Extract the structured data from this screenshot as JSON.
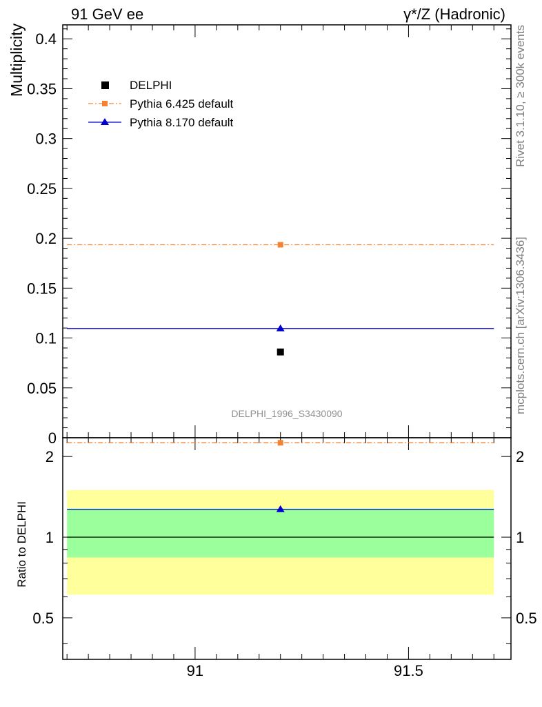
{
  "header": {
    "left_title": "91 GeV ee",
    "right_title": "γ*/Z (Hadronic)"
  },
  "side_text": {
    "rivet": "Rivet 3.1.10, ≥ 300k events",
    "mcplots": "mcplots.cern.ch [arXiv:1306.3436]"
  },
  "analysis_id": "DELPHI_1996_S3430090",
  "colors": {
    "data": "#000000",
    "pythia6": "#f58231",
    "pythia8": "#0000cc",
    "band_inner": "#9bff9b",
    "band_outer": "#ffff9b"
  },
  "chart_data": [
    {
      "type": "scatter",
      "panel": "main",
      "ylabel": "Multiplicity",
      "xlabel": "",
      "xlim": [
        90.69,
        91.74
      ],
      "ylim": [
        0,
        0.414
      ],
      "y_ticks": [
        0,
        0.05,
        0.1,
        0.15,
        0.2,
        0.25,
        0.3,
        0.35,
        0.4
      ],
      "y_tick_labels": [
        "0",
        "0.05",
        "0.1",
        "0.15",
        "0.2",
        "0.25",
        "0.3",
        "0.35",
        "0.4"
      ],
      "legend_position": "top-left",
      "series": [
        {
          "name": "DELPHI",
          "marker": "square",
          "line": "none",
          "x": [
            91.2
          ],
          "xerr": [
            0,
            0
          ],
          "values": [
            0.086
          ]
        },
        {
          "name": "Pythia 6.425 default",
          "marker": "square",
          "line": "dash-dot",
          "x": [
            91.2
          ],
          "xrange": [
            90.7,
            91.7
          ],
          "values": [
            0.1935
          ]
        },
        {
          "name": "Pythia 8.170 default",
          "marker": "triangle",
          "line": "solid",
          "x": [
            91.2
          ],
          "xrange": [
            90.7,
            91.7
          ],
          "values": [
            0.1095
          ]
        }
      ]
    },
    {
      "type": "scatter",
      "panel": "ratio",
      "ylabel": "Ratio to DELPHI",
      "xlabel": "",
      "xlim": [
        90.69,
        91.74
      ],
      "ylim": [
        0.35,
        2.35
      ],
      "y_ticks": [
        0.5,
        1,
        2
      ],
      "y_tick_labels": [
        "0.5",
        "1",
        "2"
      ],
      "x_ticks": [
        91,
        91.5
      ],
      "x_tick_labels": [
        "91",
        "91.5"
      ],
      "reference": 1,
      "bands": {
        "stat_low": 0.84,
        "stat_high": 1.28,
        "total_low": 0.61,
        "total_high": 1.5,
        "xrange": [
          90.7,
          91.7
        ]
      },
      "series": [
        {
          "name": "Pythia 6.425 default",
          "x": [
            91.2
          ],
          "values": [
            2.25
          ]
        },
        {
          "name": "Pythia 8.170 default",
          "x": [
            91.2
          ],
          "values": [
            1.27
          ]
        }
      ]
    }
  ]
}
